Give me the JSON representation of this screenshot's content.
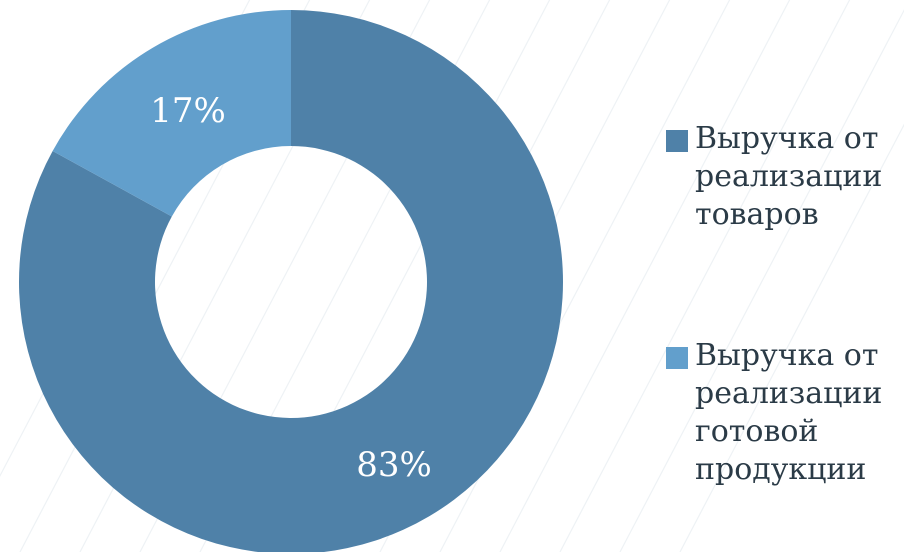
{
  "colors": {
    "series_1": "#4f81a8",
    "series_2": "#629fcc",
    "background": "#ffffff",
    "text": "#2b3b47"
  },
  "chart_data": {
    "type": "pie",
    "style": "donut",
    "slices": [
      {
        "label": "Выручка от реализации товаров",
        "value": 83,
        "data_label": "83%",
        "color": "#4f81a8"
      },
      {
        "label": "Выручка от реализации готовой продукции",
        "value": 17,
        "data_label": "17%",
        "color": "#629fcc"
      }
    ],
    "legend_placement": "right"
  }
}
